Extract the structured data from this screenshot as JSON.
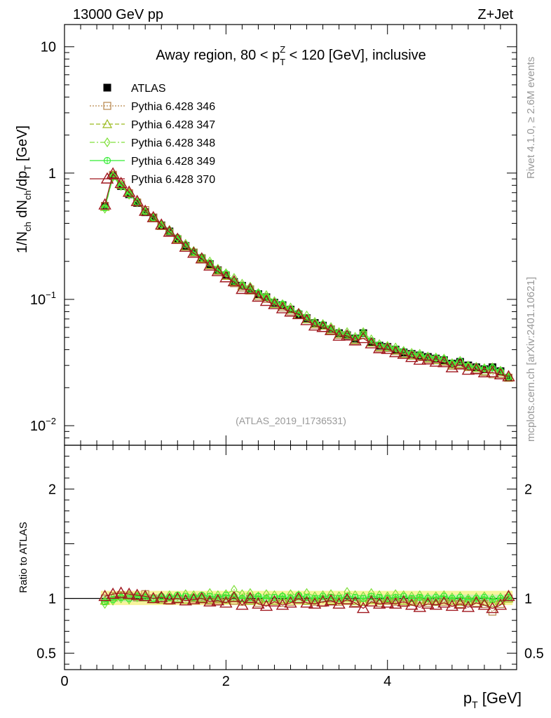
{
  "header": {
    "left": "13000 GeV pp",
    "right": "Z+Jet"
  },
  "side": {
    "rivet": "Rivet 4.1.0, ≥ 2.6M events",
    "mcplots": "mcplots.cern.ch [arXiv:2401.10621]"
  },
  "chart_data": {
    "type": "line",
    "title": "Away region, 80 < p_T^Z < 120 [GeV], inclusive",
    "title_parts": {
      "pre": "Away region, 80 < p",
      "sup": "Z",
      "sub": "T",
      "post": " < 120 [GeV], inclusive"
    },
    "analysis_label": "(ATLAS_2019_I1736531)",
    "xlabel": "p_T [GeV]",
    "xlabel_parts": {
      "main": "p",
      "sub": "T",
      "unit": " [GeV]"
    },
    "ylabel": "1/N_ch dN_ch/dp_T [GeV]",
    "ratio_ylabel": "Ratio to ATLAS",
    "xlim": [
      0,
      5.6
    ],
    "ylim": [
      0.007,
      15
    ],
    "yscale": "log",
    "ratio_ylim": [
      0.35,
      2.4
    ],
    "x_ticks": [
      "0",
      "2",
      "4"
    ],
    "y_ticks": [
      {
        "base": "10",
        "exp": "−2",
        "value": 0.01
      },
      {
        "base": "10",
        "exp": "−1",
        "value": 0.1
      },
      {
        "base": "1",
        "exp": "",
        "value": 1
      },
      {
        "base": "10",
        "exp": "",
        "value": 10
      }
    ],
    "ratio_ticks": [
      "0.5",
      "1",
      "2"
    ],
    "x": [
      0.5,
      0.6,
      0.7,
      0.8,
      0.9,
      1.0,
      1.1,
      1.2,
      1.3,
      1.4,
      1.5,
      1.6,
      1.7,
      1.8,
      1.9,
      2.0,
      2.1,
      2.2,
      2.3,
      2.4,
      2.5,
      2.6,
      2.7,
      2.8,
      2.9,
      3.0,
      3.1,
      3.2,
      3.3,
      3.4,
      3.5,
      3.6,
      3.7,
      3.8,
      3.9,
      4.0,
      4.1,
      4.2,
      4.3,
      4.4,
      4.5,
      4.6,
      4.7,
      4.8,
      4.9,
      5.0,
      5.1,
      5.2,
      5.3,
      5.4,
      5.5
    ],
    "ratio_band": {
      "lo": 0.94,
      "hi": 1.07
    },
    "series": [
      {
        "name": "ATLAS",
        "color": "#000000",
        "marker": "square",
        "values": [
          0.55,
          0.95,
          0.79,
          0.68,
          0.58,
          0.49,
          0.445,
          0.385,
          0.345,
          0.3,
          0.265,
          0.235,
          0.21,
          0.19,
          0.17,
          0.155,
          0.137,
          0.128,
          0.12,
          0.11,
          0.104,
          0.094,
          0.09,
          0.083,
          0.076,
          0.071,
          0.065,
          0.062,
          0.058,
          0.054,
          0.052,
          0.049,
          0.054,
          0.046,
          0.043,
          0.042,
          0.04,
          0.038,
          0.037,
          0.036,
          0.035,
          0.034,
          0.033,
          0.031,
          0.032,
          0.03,
          0.029,
          0.028,
          0.029,
          0.027,
          0.024
        ]
      },
      {
        "name": "Pythia 6.428 346",
        "color": "#b8864b",
        "marker": "square-open",
        "dash": "2,2",
        "ratios": [
          1.0,
          1.02,
          1.03,
          1.02,
          1.01,
          1.04,
          1.0,
          0.99,
          0.98,
          1.0,
          0.99,
          1.0,
          1.01,
          0.98,
          0.99,
          1.0,
          0.98,
          0.97,
          1.0,
          0.96,
          0.97,
          0.98,
          0.96,
          0.97,
          0.99,
          0.98,
          0.97,
          0.96,
          1.0,
          0.97,
          0.98,
          0.96,
          0.97,
          0.99,
          0.96,
          0.98,
          0.97,
          0.96,
          0.98,
          0.97,
          0.96,
          0.98,
          0.97,
          0.96,
          0.95,
          0.97,
          0.96,
          0.95,
          0.88,
          0.95,
          1.0
        ]
      },
      {
        "name": "Pythia 6.428 347",
        "color": "#9aba1e",
        "marker": "triangle-open",
        "dash": "6,3",
        "ratios": [
          0.98,
          1.01,
          1.02,
          1.03,
          1.02,
          1.01,
          1.0,
          0.99,
          1.01,
          1.0,
          0.99,
          1.01,
          1.0,
          0.99,
          1.0,
          0.99,
          1.01,
          1.0,
          0.98,
          0.99,
          1.0,
          0.98,
          0.99,
          1.0,
          0.99,
          0.98,
          0.99,
          1.0,
          0.98,
          0.99,
          1.01,
          0.98,
          0.97,
          0.99,
          0.98,
          1.0,
          0.99,
          0.98,
          0.97,
          0.99,
          0.98,
          0.97,
          0.99,
          0.98,
          0.97,
          0.98,
          0.99,
          0.97,
          0.96,
          0.98,
          1.0
        ]
      },
      {
        "name": "Pythia 6.428 348",
        "color": "#7fe03a",
        "marker": "diamond-open",
        "dash": "7,3,2,3",
        "ratios": [
          0.95,
          0.98,
          1.0,
          0.99,
          1.01,
          1.02,
          1.0,
          1.01,
          1.03,
          1.02,
          1.04,
          1.03,
          1.02,
          1.05,
          1.03,
          1.04,
          1.08,
          1.04,
          1.05,
          1.02,
          1.04,
          1.03,
          1.02,
          1.04,
          1.03,
          1.05,
          1.02,
          1.03,
          1.04,
          1.02,
          1.06,
          1.03,
          1.02,
          1.05,
          1.03,
          1.02,
          1.04,
          1.03,
          1.02,
          1.03,
          1.01,
          1.02,
          1.03,
          1.01,
          1.02,
          1.0,
          1.01,
          1.02,
          1.0,
          1.01,
          1.02
        ]
      },
      {
        "name": "Pythia 6.428 349",
        "color": "#33ee33",
        "marker": "circle-plus",
        "dash": "",
        "ratios": [
          0.97,
          0.99,
          1.01,
          1.0,
          1.02,
          1.01,
          1.0,
          1.02,
          1.01,
          1.03,
          1.02,
          1.01,
          1.03,
          1.02,
          1.01,
          1.03,
          1.02,
          1.0,
          1.01,
          1.02,
          1.0,
          1.01,
          1.02,
          1.0,
          1.03,
          1.01,
          1.0,
          1.02,
          1.01,
          1.0,
          1.02,
          1.01,
          1.0,
          1.02,
          1.01,
          1.0,
          1.01,
          1.02,
          1.0,
          1.01,
          1.0,
          1.01,
          1.02,
          1.0,
          1.01,
          0.99,
          1.0,
          1.01,
          0.99,
          1.0,
          1.01
        ]
      },
      {
        "name": "Pythia 6.428 370",
        "color": "#a0171f",
        "marker": "triangle-open-big",
        "dash": "",
        "ratios": [
          1.02,
          1.04,
          1.05,
          1.04,
          1.03,
          1.02,
          1.0,
          1.01,
          0.99,
          1.0,
          0.98,
          0.99,
          1.0,
          0.97,
          0.98,
          0.96,
          1.01,
          0.94,
          1.0,
          0.95,
          0.93,
          0.97,
          0.94,
          0.96,
          1.0,
          0.96,
          0.95,
          0.97,
          0.98,
          0.95,
          0.99,
          0.96,
          0.91,
          0.97,
          0.95,
          0.96,
          0.95,
          0.97,
          0.94,
          0.92,
          0.95,
          0.94,
          0.96,
          0.93,
          0.95,
          0.92,
          0.96,
          0.94,
          0.91,
          0.94,
          1.02
        ]
      }
    ]
  }
}
